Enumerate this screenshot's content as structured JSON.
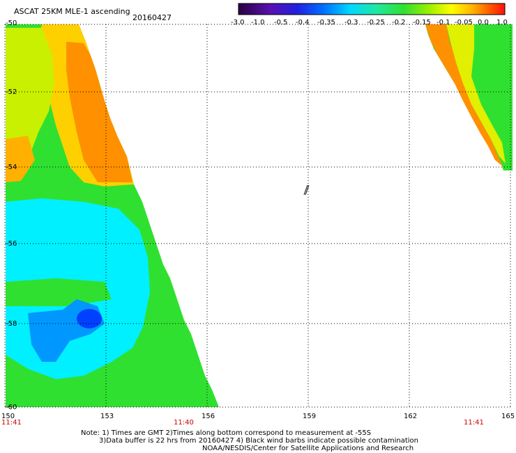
{
  "header": {
    "title": "ASCAT 25KM MLE-1 ascending",
    "date": "20160427"
  },
  "colorbar": {
    "labels": [
      "-3.0",
      "-1.0",
      "-0.5",
      "-0.4",
      "-0.35",
      "-0.3",
      "-0.25",
      "-0.2",
      "-0.15",
      "-0.1",
      "-0.05",
      "0.0",
      "1.0"
    ],
    "colors": [
      "#2a0040",
      "#5a10b0",
      "#3030e0",
      "#0050ff",
      "#0090ff",
      "#00d0ff",
      "#20e8c0",
      "#20e040",
      "#70e000",
      "#c8f000",
      "#ffe000",
      "#ffa000",
      "#ff5000",
      "#ff1000"
    ]
  },
  "map": {
    "lat_labels": [
      "-50",
      "-52",
      "-54",
      "-56",
      "-58",
      "-60"
    ],
    "lon_labels": [
      "150",
      "153",
      "156",
      "159",
      "162",
      "165"
    ],
    "time_labels": [
      "11:41",
      "11:40",
      "11:41"
    ]
  },
  "notes": {
    "line1": "Note: 1) Times are GMT 2)Times along bottom correspond to measurement at -55S",
    "line2": "3)Data buffer is 22 hrs from 20160427 4) Black wind barbs indicate possible contamination",
    "line3": "NOAA/NESDIS/Center for Satellite Applications and Research"
  }
}
